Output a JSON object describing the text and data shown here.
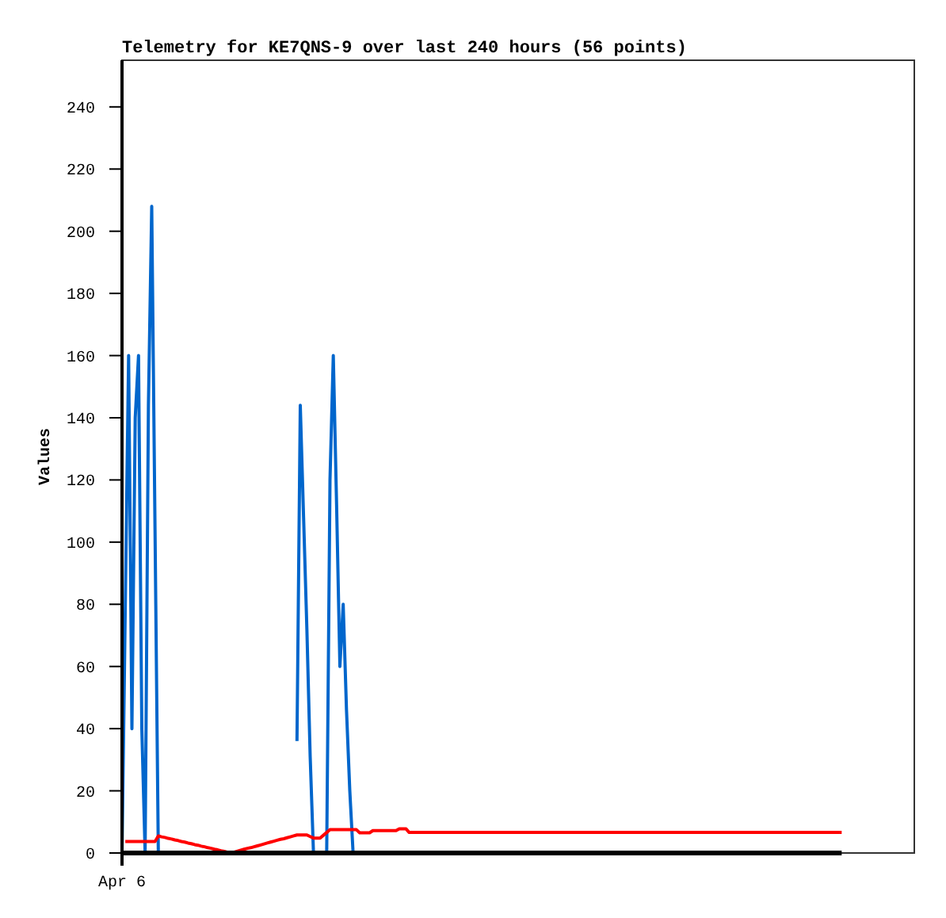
{
  "chart_data": {
    "type": "line",
    "title": "Telemetry for KE7QNS-9 over last 240 hours (56 points)",
    "ylabel": "Values",
    "categories": [
      "Apr 6",
      null,
      null,
      null,
      null,
      null,
      null,
      null,
      null,
      null,
      null,
      null,
      null,
      null,
      null,
      null,
      null,
      null,
      null,
      null,
      null,
      null,
      null,
      null,
      null,
      null,
      null,
      null,
      null,
      null,
      null,
      null,
      null,
      null,
      null,
      null,
      null,
      null,
      null,
      null,
      null,
      null,
      null,
      null,
      null,
      null,
      null,
      null,
      null,
      null,
      null,
      null,
      null,
      null,
      null,
      null,
      null,
      null,
      null,
      null,
      null,
      null,
      null,
      null,
      null,
      null,
      null,
      null,
      null,
      null,
      null,
      null,
      null,
      null,
      null,
      null,
      null,
      null,
      null,
      null,
      null,
      null,
      null,
      null,
      null,
      null,
      null,
      null,
      null,
      null,
      null,
      null,
      null,
      null,
      null,
      null,
      null,
      null,
      null,
      null,
      null,
      null,
      null,
      null,
      null,
      null,
      null,
      null,
      null,
      null,
      null,
      null,
      null,
      null,
      null,
      null,
      null,
      null,
      null,
      null,
      null,
      null,
      null,
      null,
      null,
      null,
      null,
      null,
      null,
      null,
      null,
      null,
      null,
      null,
      null,
      null,
      null,
      null,
      null,
      null,
      null,
      null,
      null,
      null,
      null,
      null,
      null,
      null,
      null,
      null,
      null,
      null,
      null,
      null,
      null,
      null,
      null,
      null,
      null,
      null,
      null,
      null,
      null,
      null,
      null,
      null,
      null,
      null,
      null,
      null,
      null,
      null,
      null,
      null,
      null,
      null,
      null,
      null,
      null,
      null,
      null,
      null,
      null,
      null,
      null,
      null,
      null,
      null,
      null,
      null,
      null,
      null,
      null,
      null,
      null,
      null,
      null,
      null,
      null,
      null,
      null,
      null,
      null,
      null,
      null,
      null,
      null,
      null,
      null,
      null,
      null,
      null,
      null,
      null,
      null,
      null,
      null,
      null,
      null,
      null,
      null,
      null,
      null,
      null,
      null,
      null,
      null,
      null,
      null,
      null,
      null,
      null,
      null,
      null,
      null,
      null,
      null,
      null,
      null,
      null,
      null
    ],
    "ylim": [
      0,
      255
    ],
    "yticks": [
      0,
      20,
      40,
      60,
      80,
      100,
      120,
      140,
      160,
      180,
      200,
      220,
      240
    ],
    "grid": false,
    "marker": "none",
    "line_style": "solid",
    "series": [
      {
        "color": "#0066cc",
        "values": [
          0,
          80,
          160,
          40,
          140,
          160,
          40,
          0,
          144,
          208,
          104,
          0,
          null,
          null,
          null,
          null,
          null,
          null,
          null,
          null,
          null,
          null,
          null,
          null,
          null,
          null,
          null,
          null,
          null,
          null,
          null,
          null,
          null,
          null,
          null,
          null,
          null,
          null,
          null,
          null,
          null,
          null,
          null,
          null,
          null,
          null,
          null,
          null,
          null,
          null,
          null,
          null,
          null,
          36,
          144,
          108,
          72,
          31,
          0,
          0,
          0,
          0,
          0,
          120,
          160,
          112,
          60,
          80,
          46,
          20,
          0,
          null,
          null,
          null,
          null,
          null,
          null,
          null,
          null,
          null,
          null,
          null,
          null,
          null,
          null,
          null,
          null,
          null,
          null,
          null,
          null,
          null,
          null,
          null,
          null,
          null,
          null,
          null,
          null,
          null,
          null,
          null,
          null,
          null,
          null,
          null,
          null,
          null,
          null,
          null,
          null,
          null,
          null,
          null,
          null,
          null,
          null,
          null,
          null,
          null,
          null,
          null,
          null,
          null,
          null,
          null,
          null,
          null,
          null,
          null,
          null,
          null,
          null,
          null,
          null,
          null,
          null,
          null,
          null,
          null,
          null,
          null,
          null,
          null,
          null,
          null,
          null,
          null,
          null,
          null,
          null,
          null,
          null,
          null,
          null,
          null,
          null,
          null,
          null,
          null,
          null,
          null,
          null,
          null,
          null,
          null,
          null,
          null,
          null,
          null,
          null,
          null,
          null,
          null,
          null,
          null,
          null,
          null,
          null,
          null,
          null,
          null,
          null,
          null,
          null,
          null,
          null,
          null,
          null,
          null,
          null,
          null,
          null,
          null,
          null,
          null,
          null,
          null,
          null,
          null,
          null,
          null,
          null,
          null,
          null,
          null,
          null,
          null,
          null,
          null,
          null,
          null,
          null,
          null,
          null,
          null,
          null,
          null,
          null,
          null,
          null,
          null,
          null,
          null,
          null,
          null,
          null,
          null,
          null,
          null,
          null,
          null,
          null,
          null,
          null,
          null,
          null,
          null,
          null,
          null,
          null
        ]
      },
      {
        "color": "#ff0000",
        "values": [
          null,
          3.7,
          3.7,
          3.7,
          3.7,
          3.7,
          3.7,
          3.7,
          3.7,
          3.7,
          3.7,
          5.5,
          5.2,
          5.0,
          4.7,
          4.5,
          4.2,
          4.0,
          3.7,
          3.5,
          3.2,
          3.0,
          2.7,
          2.5,
          2.2,
          2.0,
          1.7,
          1.5,
          1.2,
          1.0,
          0.7,
          0.5,
          0.2,
          0,
          0.3,
          0.6,
          0.9,
          1.2,
          1.5,
          1.7,
          2.0,
          2.3,
          2.6,
          2.9,
          3.2,
          3.5,
          3.8,
          4.1,
          4.4,
          4.6,
          4.9,
          5.2,
          5.5,
          5.8,
          5.8,
          5.8,
          5.8,
          5.3,
          4.8,
          4.8,
          4.8,
          5.7,
          6.6,
          7.5,
          7.5,
          7.5,
          7.5,
          7.5,
          7.5,
          7.5,
          7.5,
          7.5,
          6.5,
          6.5,
          6.5,
          6.5,
          7.2,
          7.2,
          7.2,
          7.2,
          7.2,
          7.2,
          7.2,
          7.2,
          7.8,
          7.8,
          7.8,
          6.6,
          6.6,
          6.6,
          6.6,
          6.6,
          6.6,
          6.6,
          6.6,
          6.6,
          6.6,
          6.6,
          6.6,
          6.6,
          6.6,
          6.6,
          6.6,
          6.6,
          6.6,
          6.6,
          6.6,
          6.6,
          6.6,
          6.6,
          6.6,
          6.6,
          6.6,
          6.6,
          6.6,
          6.6,
          6.6,
          6.6,
          6.6,
          6.6,
          6.6,
          6.6,
          6.6,
          6.6,
          6.6,
          6.6,
          6.6,
          6.6,
          6.6,
          6.6,
          6.6,
          6.6,
          6.6,
          6.6,
          6.6,
          6.6,
          6.6,
          6.6,
          6.6,
          6.6,
          6.6,
          6.6,
          6.6,
          6.6,
          6.6,
          6.6,
          6.6,
          6.6,
          6.6,
          6.6,
          6.6,
          6.6,
          6.6,
          6.6,
          6.6,
          6.6,
          6.6,
          6.6,
          6.6,
          6.6,
          6.6,
          6.6,
          6.6,
          6.6,
          6.6,
          6.6,
          6.6,
          6.6,
          6.6,
          6.6,
          6.6,
          6.6,
          6.6,
          6.6,
          6.6,
          6.6,
          6.6,
          6.6,
          6.6,
          6.6,
          6.6,
          6.6,
          6.6,
          6.6,
          6.6,
          6.6,
          6.6,
          6.6,
          6.6,
          6.6,
          6.6,
          6.6,
          6.6,
          6.6,
          6.6,
          6.6,
          6.6,
          6.6,
          6.6,
          6.6,
          6.6,
          6.6,
          6.6,
          6.6,
          6.6,
          6.6,
          6.6,
          6.6,
          6.6,
          6.6,
          6.6,
          6.6,
          6.6,
          6.6,
          6.6,
          6.6,
          6.6,
          6.6,
          6.6,
          null,
          null,
          null,
          null,
          null,
          null,
          null,
          null,
          null,
          null,
          null,
          null,
          null,
          null,
          null,
          null,
          null,
          null,
          null,
          null,
          null,
          null
        ]
      },
      {
        "color": "#000000",
        "values": [
          0,
          0,
          0,
          0,
          0,
          0,
          0,
          0,
          0,
          0,
          0,
          0,
          0,
          0,
          0,
          0,
          0,
          0,
          0,
          0,
          0,
          0,
          0,
          0,
          0,
          0,
          0,
          0,
          0,
          0,
          0,
          0,
          0,
          0,
          0,
          0,
          0,
          0,
          0,
          0,
          0,
          0,
          0,
          0,
          0,
          0,
          0,
          0,
          0,
          0,
          0,
          0,
          0,
          0,
          0,
          0,
          0,
          0,
          0,
          0,
          0,
          0,
          0,
          0,
          0,
          0,
          0,
          0,
          0,
          0,
          0,
          0,
          0,
          0,
          0,
          0,
          0,
          0,
          0,
          0,
          0,
          0,
          0,
          0,
          0,
          0,
          0,
          0,
          0,
          0,
          0,
          0,
          0,
          0,
          0,
          0,
          0,
          0,
          0,
          0,
          0,
          0,
          0,
          0,
          0,
          0,
          0,
          0,
          0,
          0,
          0,
          0,
          0,
          0,
          0,
          0,
          0,
          0,
          0,
          0,
          0,
          0,
          0,
          0,
          0,
          0,
          0,
          0,
          0,
          0,
          0,
          0,
          0,
          0,
          0,
          0,
          0,
          0,
          0,
          0,
          0,
          0,
          0,
          0,
          0,
          0,
          0,
          0,
          0,
          0,
          0,
          0,
          0,
          0,
          0,
          0,
          0,
          0,
          0,
          0,
          0,
          0,
          0,
          0,
          0,
          0,
          0,
          0,
          0,
          0,
          0,
          0,
          0,
          0,
          0,
          0,
          0,
          0,
          0,
          0,
          0,
          0,
          0,
          0,
          0,
          0,
          0,
          0,
          0,
          0,
          0,
          0,
          0,
          0,
          0,
          0,
          0,
          0,
          0,
          0,
          0,
          0,
          0,
          0,
          0,
          0,
          0,
          0,
          0,
          0,
          0,
          0,
          0,
          0,
          0,
          0,
          0,
          0,
          0,
          null,
          null,
          null,
          null,
          null,
          null,
          null,
          null,
          null,
          null,
          null,
          null,
          null,
          null,
          null,
          null,
          null,
          null,
          null,
          null,
          null,
          null
        ]
      }
    ]
  }
}
